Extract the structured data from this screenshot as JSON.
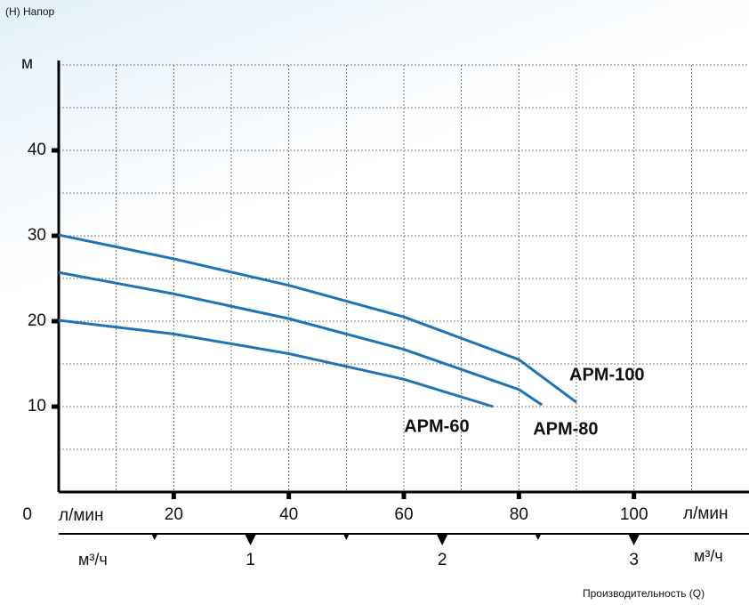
{
  "chart_data": {
    "type": "line",
    "title": "(H) Напор",
    "y_label": "м",
    "x_label": "л/мин",
    "x2_label": "м³/ч",
    "footer": "Производительность (Q)",
    "xlim": [
      0,
      120
    ],
    "ylim": [
      0,
      50
    ],
    "xticks": [
      20,
      40,
      60,
      80,
      100
    ],
    "yticks": [
      0,
      10,
      20,
      30,
      40
    ],
    "xgrid": [
      10,
      20,
      30,
      40,
      50,
      60,
      70,
      80,
      90,
      100,
      110
    ],
    "ygrid": [
      5,
      10,
      15,
      20,
      25,
      30,
      35,
      40,
      45,
      50
    ],
    "x2lim": [
      0,
      3.6
    ],
    "x2ticks": [
      1,
      2,
      3
    ],
    "x2minor": [
      0.5,
      1.5,
      2.5
    ],
    "grid": true,
    "series": [
      {
        "name": "APM-60",
        "color": "#1f74b5",
        "x": [
          0,
          20,
          40,
          60,
          75.5
        ],
        "values": [
          20.1,
          18.5,
          16.2,
          13.2,
          10
        ]
      },
      {
        "name": "APM-80",
        "color": "#1f74b5",
        "x": [
          0,
          20,
          40,
          60,
          80,
          84
        ],
        "values": [
          25.7,
          23.2,
          20.3,
          16.7,
          12,
          10.2
        ]
      },
      {
        "name": "APM-100",
        "color": "#1f74b5",
        "x": [
          0,
          20,
          40,
          60,
          80,
          90
        ],
        "values": [
          30.1,
          27.3,
          24.2,
          20.5,
          15.5,
          10.5
        ]
      }
    ]
  }
}
